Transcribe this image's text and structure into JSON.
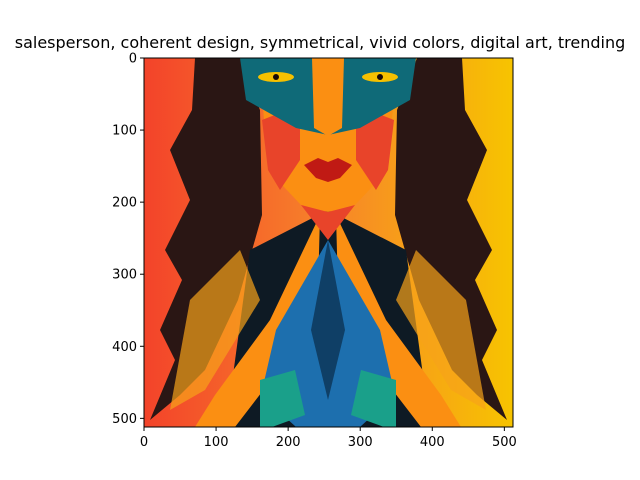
{
  "chart_data": {
    "type": "image",
    "title": "salesperson,  coherent design, symmetrical, vivid colors, digital art, trending",
    "xlabel": "",
    "ylabel": "",
    "image_width": 512,
    "image_height": 512,
    "xlim": [
      0,
      512
    ],
    "ylim": [
      512,
      0
    ],
    "x_ticks": [
      0,
      100,
      200,
      300,
      400,
      500
    ],
    "y_ticks": [
      0,
      100,
      200,
      300,
      400,
      500
    ],
    "x_tick_labels": [
      "0",
      "100",
      "200",
      "300",
      "400",
      "500"
    ],
    "y_tick_labels": [
      "0",
      "100",
      "200",
      "300",
      "400",
      "500"
    ],
    "image_subject": "stylized symmetrical geometric portrait of a woman with long dark hair",
    "colors": {
      "bg_left": "#f3432a",
      "bg_right": "#f7c400",
      "hair": "#2a1614",
      "face_orange": "#fb8f12",
      "face_red": "#e8442a",
      "teal_band": "#0f6a78",
      "blue": "#1d6fae",
      "green": "#1aa08a",
      "dark": "#0e1a24"
    }
  }
}
